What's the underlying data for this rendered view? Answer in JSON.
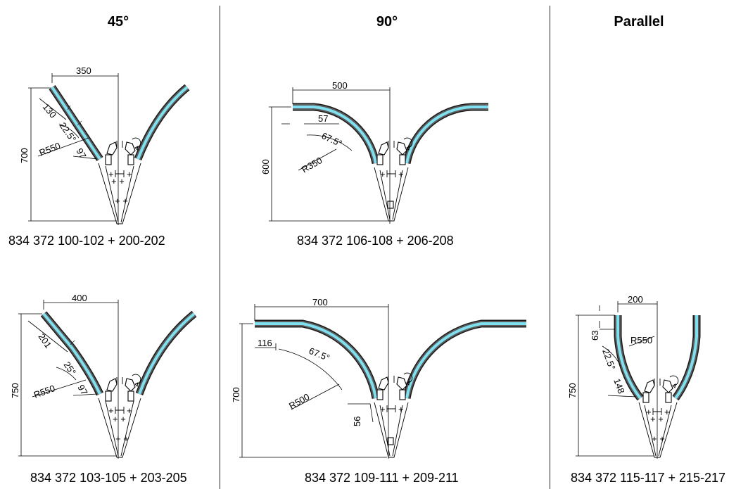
{
  "columns": [
    {
      "key": "c45",
      "heading": "45°"
    },
    {
      "key": "c90",
      "heading": "90°"
    },
    {
      "key": "cpar",
      "heading": "Parallel"
    }
  ],
  "panels": [
    {
      "key": "p1",
      "part_number": "834 372 100-102 + 200-202",
      "dims": {
        "width": "350",
        "height": "700",
        "straight": "130",
        "angle": "22.5°",
        "radius": "R550",
        "gap": "97"
      }
    },
    {
      "key": "p2",
      "part_number": "834 372 103-105 + 203-205",
      "dims": {
        "width": "400",
        "height": "750",
        "straight": "201",
        "angle": "25°",
        "radius": "R550",
        "gap": "97"
      }
    },
    {
      "key": "p3",
      "part_number": "834 372 106-108 + 206-208",
      "dims": {
        "width": "500",
        "height": "600",
        "straight": "57",
        "angle": "67.5°",
        "radius": "R350"
      }
    },
    {
      "key": "p4",
      "part_number": "834 372 109-111 + 209-211",
      "dims": {
        "width": "700",
        "height": "700",
        "straight": "116",
        "angle": "67.5°",
        "radius": "R500",
        "gap": "56"
      }
    },
    {
      "key": "p5",
      "part_number": "834 372 115-117 + 215-217",
      "dims": {
        "width": "200",
        "height": "750",
        "offset": "63",
        "angle": "22.5°",
        "radius": "R550",
        "gap": "148"
      }
    }
  ],
  "colors": {
    "rail_outer": "#1a1a1a",
    "rail_inner": "#7fe0f0",
    "separator": "#222222"
  }
}
